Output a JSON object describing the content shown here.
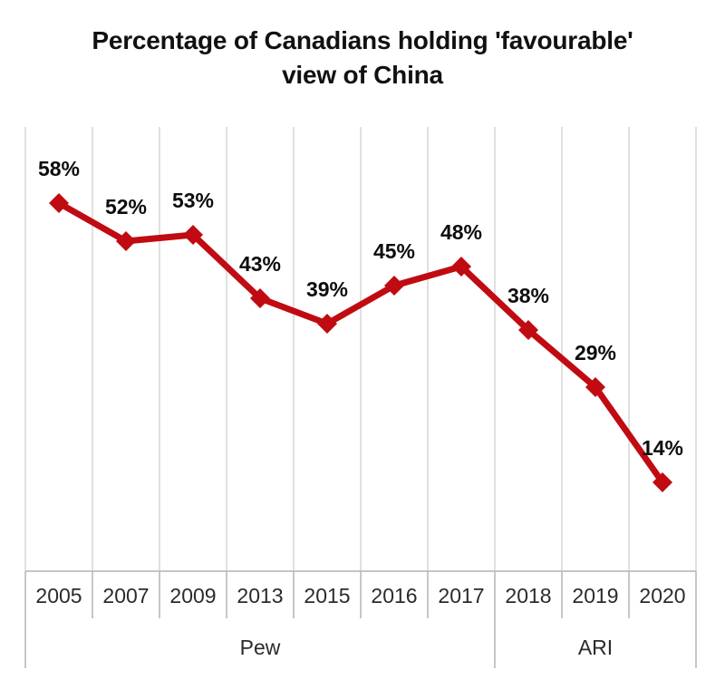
{
  "chart_data": {
    "type": "line",
    "title": "Percentage of Canadians holding 'favourable' view of China",
    "title_lines": [
      "Percentage of Canadians holding 'favourable'",
      "view of China"
    ],
    "categories": [
      "2005",
      "2007",
      "2009",
      "2013",
      "2015",
      "2016",
      "2017",
      "2018",
      "2019",
      "2020"
    ],
    "values": [
      58,
      52,
      53,
      43,
      39,
      45,
      48,
      38,
      29,
      14
    ],
    "data_labels": [
      "58%",
      "52%",
      "53%",
      "43%",
      "39%",
      "45%",
      "48%",
      "38%",
      "29%",
      "14%"
    ],
    "groups": [
      {
        "label": "Pew",
        "start": 0,
        "end": 6
      },
      {
        "label": "ARI",
        "start": 7,
        "end": 9
      }
    ],
    "xlabel": "",
    "ylabel": "",
    "ylim": [
      0,
      70
    ],
    "grid": "vertical-only",
    "legend": "none",
    "marker": "diamond",
    "colors": {
      "line": "#C00B12",
      "marker": "#C00B12",
      "gridline": "#DBDBDB",
      "axis": "#BDBDBD",
      "data_label": "#0d0d0d",
      "axis_text": "#2b2b2b",
      "title": "#111111"
    }
  }
}
